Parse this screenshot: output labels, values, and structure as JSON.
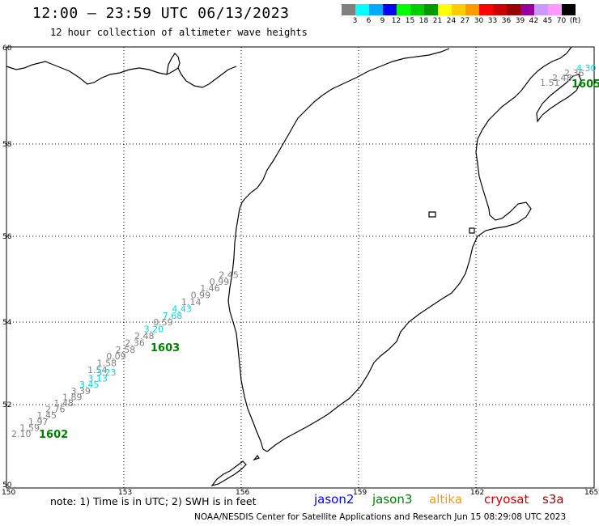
{
  "header": {
    "title": "12:00 – 23:59 UTC 06/13/2023",
    "subtitle": "12 hour collection of altimeter wave heights"
  },
  "colorbar": {
    "colors": [
      "#808080",
      "#00ffff",
      "#00aaff",
      "#0000ff",
      "#00ff00",
      "#00cc00",
      "#009900",
      "#ffff00",
      "#ffcc00",
      "#ff9900",
      "#ff0000",
      "#cc0000",
      "#990000",
      "#990099",
      "#cc99ff",
      "#ff99ff",
      "#000000"
    ],
    "labels": [
      "3",
      "6",
      "9",
      "12",
      "15",
      "18",
      "21",
      "24",
      "27",
      "30",
      "33",
      "36",
      "39",
      "42",
      "45",
      "70",
      "(ft)"
    ]
  },
  "map": {
    "y_ticks": [
      "60",
      "58",
      "56",
      "54",
      "52",
      "50"
    ],
    "x_ticks": [
      "150",
      "153",
      "156",
      "159",
      "162",
      "165"
    ],
    "colors": {
      "gray": "#808080",
      "cyan": "#00d8d8",
      "green": "#008000"
    },
    "passes": [
      {
        "id": "1605",
        "values": [
          {
            "v": "1.51",
            "c": "gray"
          },
          {
            "v": "2.48",
            "c": "gray"
          },
          {
            "v": "2.36",
            "c": "gray"
          },
          {
            "v": "4.30",
            "c": "cyan"
          }
        ]
      },
      {
        "id": "1603",
        "values": [
          {
            "v": "1.54",
            "c": "gray"
          },
          {
            "v": "1.58",
            "c": "gray"
          },
          {
            "v": "0.09",
            "c": "gray"
          },
          {
            "v": "2.58",
            "c": "gray"
          },
          {
            "v": "2.36",
            "c": "gray"
          },
          {
            "v": "2.48",
            "c": "gray"
          },
          {
            "v": "3.20",
            "c": "cyan"
          },
          {
            "v": "0.59",
            "c": "gray"
          },
          {
            "v": "7.68",
            "c": "cyan"
          },
          {
            "v": "4.43",
            "c": "cyan"
          },
          {
            "v": "1.14",
            "c": "gray"
          },
          {
            "v": "0.99",
            "c": "gray"
          },
          {
            "v": "1.46",
            "c": "gray"
          },
          {
            "v": "0.99",
            "c": "gray"
          },
          {
            "v": "2.45",
            "c": "gray"
          }
        ]
      },
      {
        "id": "1602",
        "values": [
          {
            "v": "2.10",
            "c": "gray"
          },
          {
            "v": "1.59",
            "c": "gray"
          },
          {
            "v": "1.97",
            "c": "gray"
          },
          {
            "v": "1.45",
            "c": "gray"
          },
          {
            "v": "2.76",
            "c": "gray"
          },
          {
            "v": "1.48",
            "c": "gray"
          },
          {
            "v": "1.89",
            "c": "gray"
          },
          {
            "v": "3.39",
            "c": "gray"
          },
          {
            "v": "3.45",
            "c": "cyan"
          },
          {
            "v": "3.13",
            "c": "cyan"
          },
          {
            "v": "3.23",
            "c": "cyan"
          }
        ]
      }
    ]
  },
  "footer": {
    "note": "note:  1) Time is in UTC;  2) SWH is in feet",
    "satellites": [
      {
        "name": "jason2",
        "color": "#0000ff"
      },
      {
        "name": "jason3",
        "color": "#008000"
      },
      {
        "name": "altika",
        "color": "#ff9900"
      },
      {
        "name": "cryosat",
        "color": "#cc0000"
      },
      {
        "name": "s3a",
        "color": "#990000"
      }
    ],
    "credit": "NOAA/NESDIS Center for Satellite Applications and Research    Jun 15 08:29:08 UTC 2023"
  }
}
